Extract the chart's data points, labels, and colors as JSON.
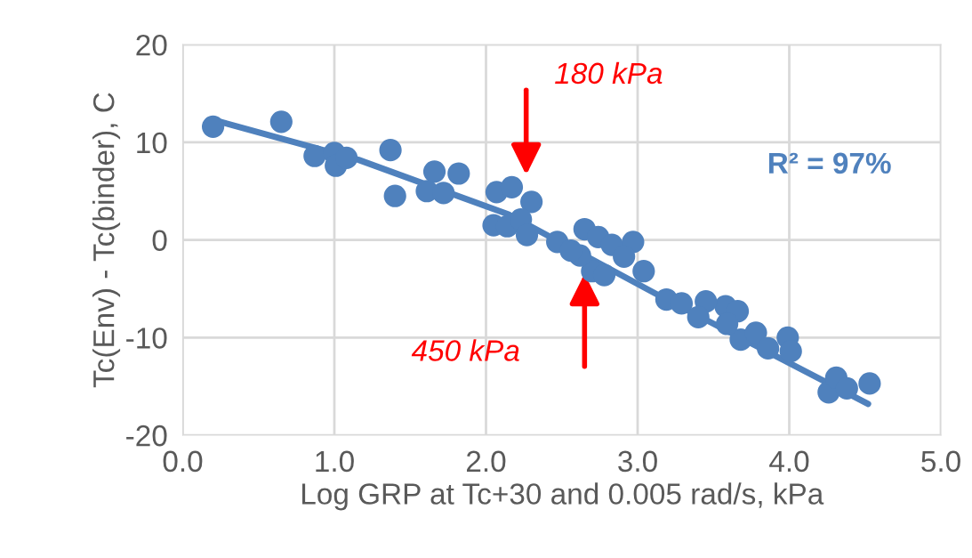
{
  "chart_data": {
    "type": "scatter",
    "xlabel": "Log GRP at Tc+30 and 0.005 rad/s, kPa",
    "ylabel": "Tc(Env) - Tc(binder), C",
    "xlim": [
      0,
      5
    ],
    "ylim": [
      -20,
      20
    ],
    "xticks": [
      {
        "value": 0,
        "label": "0.0"
      },
      {
        "value": 1,
        "label": "1.0"
      },
      {
        "value": 2,
        "label": "2.0"
      },
      {
        "value": 3,
        "label": "3.0"
      },
      {
        "value": 4,
        "label": "4.0"
      },
      {
        "value": 5,
        "label": "5.0"
      }
    ],
    "yticks": [
      -20,
      -10,
      0,
      10,
      20
    ],
    "grid": true,
    "series": [
      {
        "type": "line",
        "marker": "none",
        "color": "#4f81bd",
        "x": [
          0.2,
          1.16,
          2.15,
          3.13,
          4.52
        ],
        "values": [
          12.3,
          8.2,
          2.6,
          -5.6,
          -16.8
        ]
      },
      {
        "marker": "circle",
        "color": "#4f81bd",
        "x": [
          0.2,
          0.65,
          0.87,
          1.0,
          1.01,
          1.08,
          1.37,
          1.4,
          1.66,
          1.82,
          1.61,
          1.72,
          2.07,
          2.17,
          2.3,
          2.05,
          2.14,
          2.23,
          2.27,
          2.47,
          2.65,
          2.74,
          2.83,
          2.97,
          2.91,
          2.7,
          2.78,
          2.62,
          2.56,
          3.04,
          3.19,
          3.29,
          3.58,
          3.66,
          3.68,
          3.45,
          3.4,
          3.59,
          3.78,
          3.86,
          3.99,
          4.01,
          4.26,
          4.31,
          4.38,
          4.53
        ],
        "values": [
          11.6,
          12.1,
          8.6,
          8.9,
          7.6,
          8.4,
          9.2,
          4.5,
          7.0,
          6.8,
          5.0,
          4.8,
          4.9,
          5.4,
          3.9,
          1.5,
          1.4,
          2.1,
          0.5,
          -0.2,
          1.1,
          0.3,
          -0.5,
          -0.2,
          -1.7,
          -3.2,
          -3.6,
          -1.6,
          -1.1,
          -3.2,
          -6.1,
          -6.5,
          -6.8,
          -7.3,
          -10.2,
          -6.3,
          -7.9,
          -8.6,
          -9.5,
          -11.1,
          -10.0,
          -11.4,
          -15.6,
          -14.1,
          -15.2,
          -14.7
        ]
      }
    ],
    "annotations": [
      "180 kPa",
      "450 kPa",
      "R² = 97%"
    ]
  }
}
